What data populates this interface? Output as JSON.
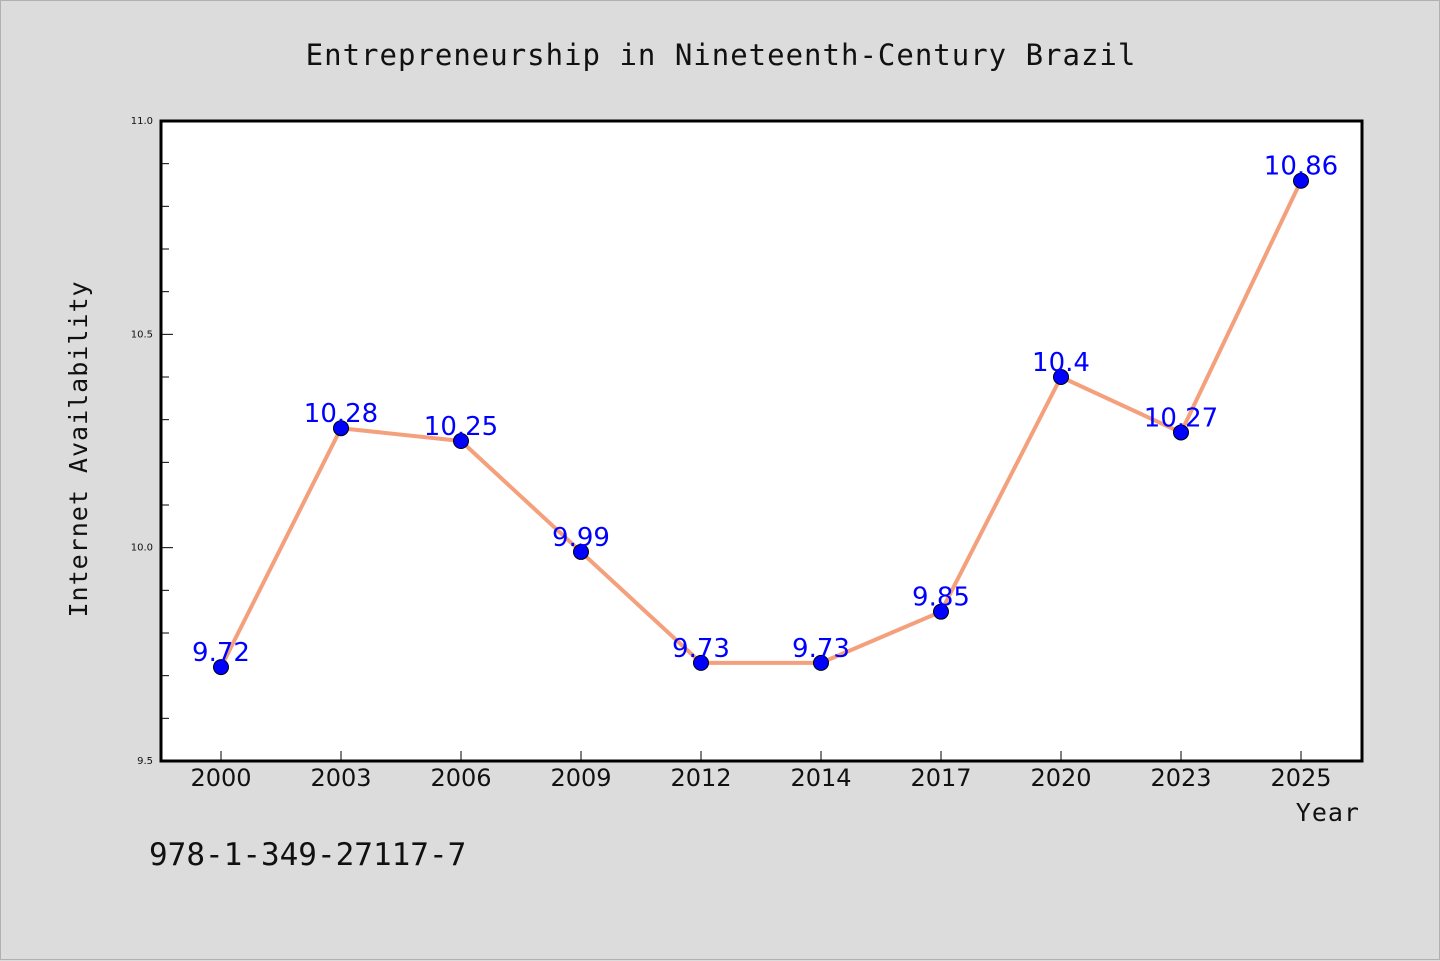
{
  "chart_data": {
    "type": "line",
    "title": "Entrepreneurship in Nineteenth-Century Brazil",
    "xlabel": "Year",
    "ylabel": "Internet Availability",
    "categories": [
      "2000",
      "2003",
      "2006",
      "2009",
      "2012",
      "2014",
      "2017",
      "2020",
      "2023",
      "2025"
    ],
    "series": [
      {
        "values": [
          9.72,
          10.28,
          10.25,
          9.99,
          9.73,
          9.73,
          9.85,
          10.4,
          10.27,
          10.86
        ]
      }
    ],
    "data_labels": [
      "9.72",
      "10.28",
      "10.25",
      "9.99",
      "9.73",
      "9.73",
      "9.85",
      "10.4",
      "10.27",
      "10.86"
    ],
    "ylim": [
      9.5,
      11.0
    ],
    "yticks": [
      9.5,
      10.0,
      10.5,
      11.0
    ],
    "ytick_labels": [
      "9.5",
      "10.0",
      "10.5",
      "11.0"
    ],
    "yminor_step": 0.1,
    "grid": false,
    "line_color": "#f4a07c",
    "marker_color": "#0000ff",
    "label_color": "#0000ff"
  },
  "footer": {
    "isbn": "978-1-349-27117-7"
  }
}
